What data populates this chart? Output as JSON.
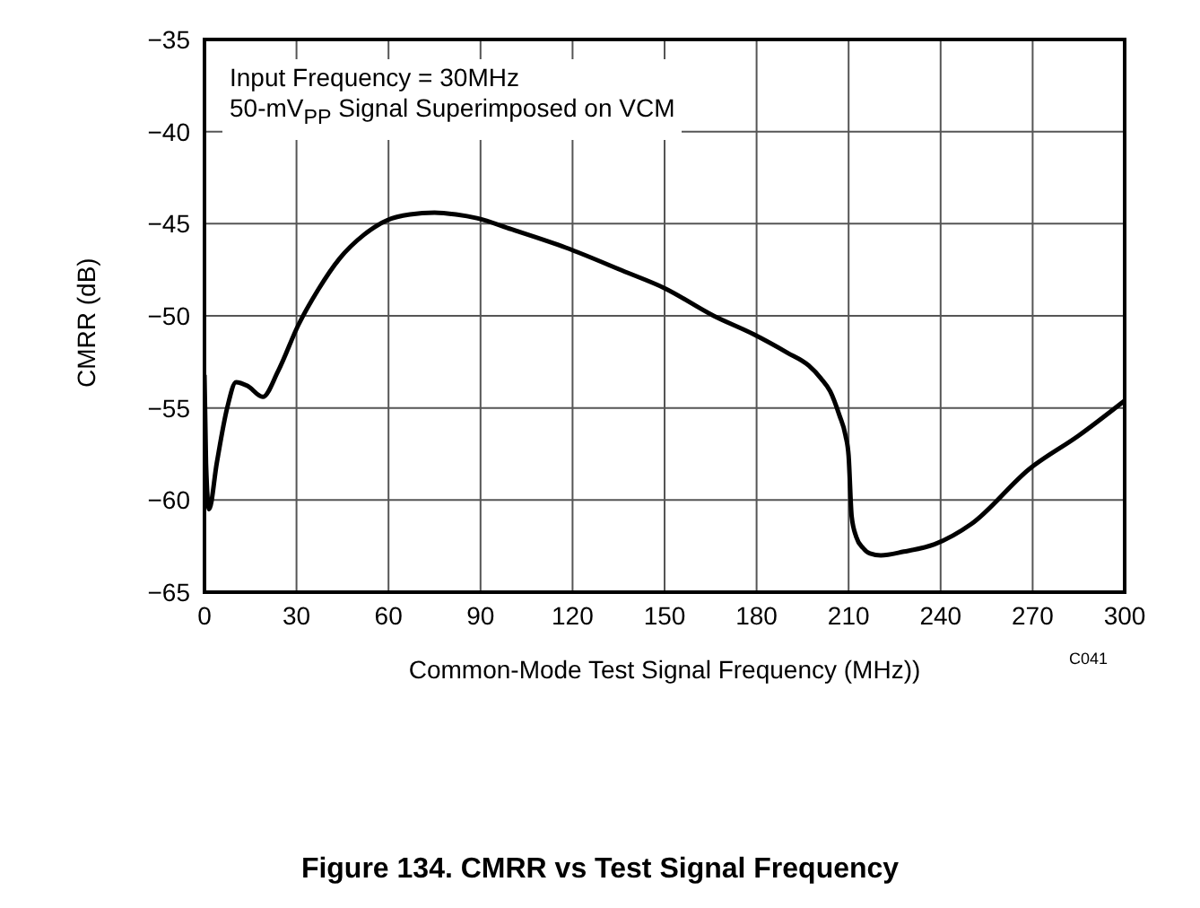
{
  "chart_data": {
    "type": "line",
    "title": "Figure 134. CMRR vs Test Signal Frequency",
    "xlabel": "Common-Mode Test Signal Frequency (MHz))",
    "ylabel": "CMRR (dB)",
    "annotations": [
      "Input Frequency = 30MHz",
      "50-mV$_{PP}$ Signal Superimposed on VCM",
      "C041"
    ],
    "xlim": [
      0,
      300
    ],
    "xticks": [
      0,
      30,
      60,
      90,
      120,
      150,
      180,
      210,
      240,
      270,
      300
    ],
    "ylim": [
      -65,
      -35
    ],
    "yticks": [
      {
        "value": -65,
        "label": "−65"
      },
      {
        "value": -60,
        "label": "−60"
      },
      {
        "value": -55,
        "label": "−55"
      },
      {
        "value": -50,
        "label": "−50"
      },
      {
        "value": -45,
        "label": "−45"
      },
      {
        "value": -40,
        "label": "−40"
      },
      {
        "value": -35,
        "label": "−35"
      }
    ],
    "grid": true,
    "marker": "none",
    "line_style": "solid",
    "x": [
      0,
      0.5,
      1.5,
      4,
      7.4,
      10.3,
      14,
      19,
      24,
      30.6,
      37,
      44,
      52,
      59.7,
      67,
      75,
      82,
      88.8,
      100,
      117.8,
      137,
      150,
      166,
      179,
      190,
      197,
      201,
      204,
      207,
      209,
      210,
      211,
      212.5,
      214.7,
      217,
      220.5,
      228,
      238,
      250,
      269,
      285,
      300
    ],
    "series": [
      {
        "color": "#000000",
        "values": [
          -53.2,
          -58,
          -60.5,
          -58,
          -55.0,
          -53.6,
          -53.8,
          -54.4,
          -53,
          -50.5,
          -48.6,
          -46.9,
          -45.6,
          -44.8,
          -44.5,
          -44.4,
          -44.5,
          -44.7,
          -45.3,
          -46.3,
          -47.6,
          -48.5,
          -50.0,
          -51.0,
          -52.0,
          -52.7,
          -53.4,
          -54.1,
          -55.4,
          -56.5,
          -57.6,
          -60.9,
          -62.0,
          -62.6,
          -62.9,
          -63.0,
          -62.8,
          -62.4,
          -61.3,
          -58.3,
          -56.5,
          -54.6
        ]
      }
    ]
  }
}
